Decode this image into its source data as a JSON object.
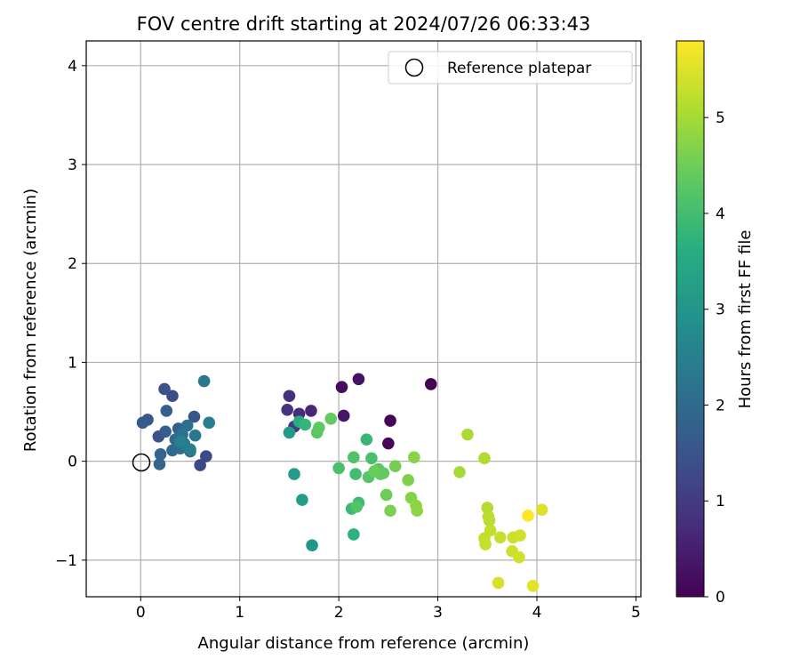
{
  "chart_data": {
    "type": "scatter",
    "title": "FOV centre drift starting at 2024/07/26 06:33:43",
    "xlabel": "Angular distance from reference (arcmin)",
    "ylabel": "Rotation from reference (arcmin)",
    "xlim": [
      -0.55,
      5.05
    ],
    "ylim": [
      -1.37,
      4.25
    ],
    "xticks": [
      0,
      1,
      2,
      3,
      4,
      5
    ],
    "yticks": [
      -1,
      0,
      1,
      2,
      3,
      4
    ],
    "xtick_labels": [
      "0",
      "1",
      "2",
      "3",
      "4",
      "5"
    ],
    "ytick_labels": [
      "−1",
      "0",
      "1",
      "2",
      "3",
      "4"
    ],
    "grid": true,
    "legend": {
      "placement": "top-right",
      "entries": [
        "Reference platepar"
      ]
    },
    "reference_point": {
      "x": 0,
      "y": 0
    },
    "colorbar": {
      "label": "Hours from first FF file",
      "colormap": "viridis",
      "range": [
        0,
        5.8
      ],
      "ticks": [
        0,
        1,
        2,
        3,
        4,
        5
      ],
      "tick_labels": [
        "0",
        "1",
        "2",
        "3",
        "4",
        "5"
      ]
    },
    "points": [
      {
        "x": 2.93,
        "y": 0.78,
        "t": 0.0
      },
      {
        "x": 2.52,
        "y": 0.41,
        "t": 0.05
      },
      {
        "x": 2.5,
        "y": 0.18,
        "t": 0.1
      },
      {
        "x": 2.03,
        "y": 0.75,
        "t": 0.2
      },
      {
        "x": 2.2,
        "y": 0.83,
        "t": 0.3
      },
      {
        "x": 2.05,
        "y": 0.46,
        "t": 0.35
      },
      {
        "x": 1.72,
        "y": 0.51,
        "t": 0.65
      },
      {
        "x": 1.6,
        "y": 0.48,
        "t": 0.75
      },
      {
        "x": 1.5,
        "y": 0.66,
        "t": 0.8
      },
      {
        "x": 1.48,
        "y": 0.52,
        "t": 0.85
      },
      {
        "x": 1.55,
        "y": 0.35,
        "t": 1.0
      },
      {
        "x": 0.6,
        "y": -0.04,
        "t": 1.25
      },
      {
        "x": 0.66,
        "y": 0.05,
        "t": 1.3
      },
      {
        "x": 0.32,
        "y": 0.66,
        "t": 1.35
      },
      {
        "x": 0.24,
        "y": 0.73,
        "t": 1.45
      },
      {
        "x": 0.18,
        "y": 0.25,
        "t": 1.5
      },
      {
        "x": 0.54,
        "y": 0.45,
        "t": 1.55
      },
      {
        "x": 0.07,
        "y": 0.42,
        "t": 1.6
      },
      {
        "x": 0.02,
        "y": 0.39,
        "t": 1.65
      },
      {
        "x": 0.25,
        "y": 0.3,
        "t": 1.7
      },
      {
        "x": 0.26,
        "y": 0.51,
        "t": 1.75
      },
      {
        "x": 0.38,
        "y": 0.33,
        "t": 1.8
      },
      {
        "x": 0.2,
        "y": 0.07,
        "t": 1.85
      },
      {
        "x": 0.19,
        "y": -0.03,
        "t": 1.9
      },
      {
        "x": 0.32,
        "y": 0.11,
        "t": 1.95
      },
      {
        "x": 0.35,
        "y": 0.22,
        "t": 2.0
      },
      {
        "x": 0.4,
        "y": 0.13,
        "t": 2.05
      },
      {
        "x": 0.47,
        "y": 0.36,
        "t": 2.1
      },
      {
        "x": 0.42,
        "y": 0.27,
        "t": 2.15
      },
      {
        "x": 0.5,
        "y": 0.1,
        "t": 2.2
      },
      {
        "x": 0.55,
        "y": 0.26,
        "t": 2.25
      },
      {
        "x": 0.44,
        "y": 0.18,
        "t": 2.3
      },
      {
        "x": 0.64,
        "y": 0.81,
        "t": 2.35
      },
      {
        "x": 0.69,
        "y": 0.39,
        "t": 2.4
      },
      {
        "x": 0.5,
        "y": 0.12,
        "t": 2.45
      },
      {
        "x": 0.4,
        "y": 0.2,
        "t": 2.5
      },
      {
        "x": 1.73,
        "y": -0.85,
        "t": 3.0
      },
      {
        "x": 1.5,
        "y": 0.29,
        "t": 3.1
      },
      {
        "x": 1.55,
        "y": -0.13,
        "t": 3.15
      },
      {
        "x": 1.63,
        "y": -0.39,
        "t": 3.2
      },
      {
        "x": 1.6,
        "y": 0.4,
        "t": 3.6
      },
      {
        "x": 2.15,
        "y": -0.74,
        "t": 3.7
      },
      {
        "x": 1.66,
        "y": 0.37,
        "t": 3.8
      },
      {
        "x": 2.28,
        "y": 0.22,
        "t": 3.85
      },
      {
        "x": 2.13,
        "y": -0.48,
        "t": 3.9
      },
      {
        "x": 2.2,
        "y": -0.42,
        "t": 3.95
      },
      {
        "x": 2.17,
        "y": -0.13,
        "t": 4.0
      },
      {
        "x": 2.33,
        "y": 0.03,
        "t": 4.05
      },
      {
        "x": 2.0,
        "y": -0.07,
        "t": 4.1
      },
      {
        "x": 2.15,
        "y": 0.04,
        "t": 4.15
      },
      {
        "x": 2.18,
        "y": -0.46,
        "t": 4.2
      },
      {
        "x": 2.3,
        "y": -0.16,
        "t": 4.25
      },
      {
        "x": 2.4,
        "y": -0.08,
        "t": 4.3
      },
      {
        "x": 2.45,
        "y": -0.12,
        "t": 4.35
      },
      {
        "x": 2.42,
        "y": -0.13,
        "t": 4.4
      },
      {
        "x": 2.36,
        "y": -0.1,
        "t": 4.45
      },
      {
        "x": 2.48,
        "y": -0.34,
        "t": 4.5
      },
      {
        "x": 2.57,
        "y": -0.05,
        "t": 4.55
      },
      {
        "x": 2.52,
        "y": -0.5,
        "t": 4.6
      },
      {
        "x": 2.7,
        "y": -0.19,
        "t": 4.65
      },
      {
        "x": 2.73,
        "y": -0.37,
        "t": 4.7
      },
      {
        "x": 2.76,
        "y": 0.04,
        "t": 4.75
      },
      {
        "x": 2.78,
        "y": -0.45,
        "t": 4.8
      },
      {
        "x": 2.79,
        "y": -0.5,
        "t": 4.8
      },
      {
        "x": 1.92,
        "y": 0.43,
        "t": 4.4
      },
      {
        "x": 1.8,
        "y": 0.34,
        "t": 4.35
      },
      {
        "x": 1.78,
        "y": 0.29,
        "t": 4.3
      },
      {
        "x": 3.22,
        "y": -0.11,
        "t": 5.0
      },
      {
        "x": 3.3,
        "y": 0.27,
        "t": 5.05
      },
      {
        "x": 3.47,
        "y": 0.03,
        "t": 5.1
      },
      {
        "x": 3.5,
        "y": -0.47,
        "t": 5.15
      },
      {
        "x": 3.51,
        "y": -0.56,
        "t": 5.2
      },
      {
        "x": 3.52,
        "y": -0.6,
        "t": 5.2
      },
      {
        "x": 3.53,
        "y": -0.7,
        "t": 5.25
      },
      {
        "x": 3.47,
        "y": -0.78,
        "t": 5.25
      },
      {
        "x": 3.48,
        "y": -0.84,
        "t": 5.3
      },
      {
        "x": 3.63,
        "y": -0.77,
        "t": 5.3
      },
      {
        "x": 3.76,
        "y": -0.77,
        "t": 5.35
      },
      {
        "x": 3.75,
        "y": -0.91,
        "t": 5.35
      },
      {
        "x": 3.83,
        "y": -0.75,
        "t": 5.4
      },
      {
        "x": 3.82,
        "y": -0.97,
        "t": 5.4
      },
      {
        "x": 3.61,
        "y": -1.23,
        "t": 5.45
      },
      {
        "x": 4.05,
        "y": -0.49,
        "t": 5.5
      },
      {
        "x": 3.96,
        "y": -1.26,
        "t": 5.55
      },
      {
        "x": 3.91,
        "y": -0.55,
        "t": 5.8
      }
    ]
  }
}
